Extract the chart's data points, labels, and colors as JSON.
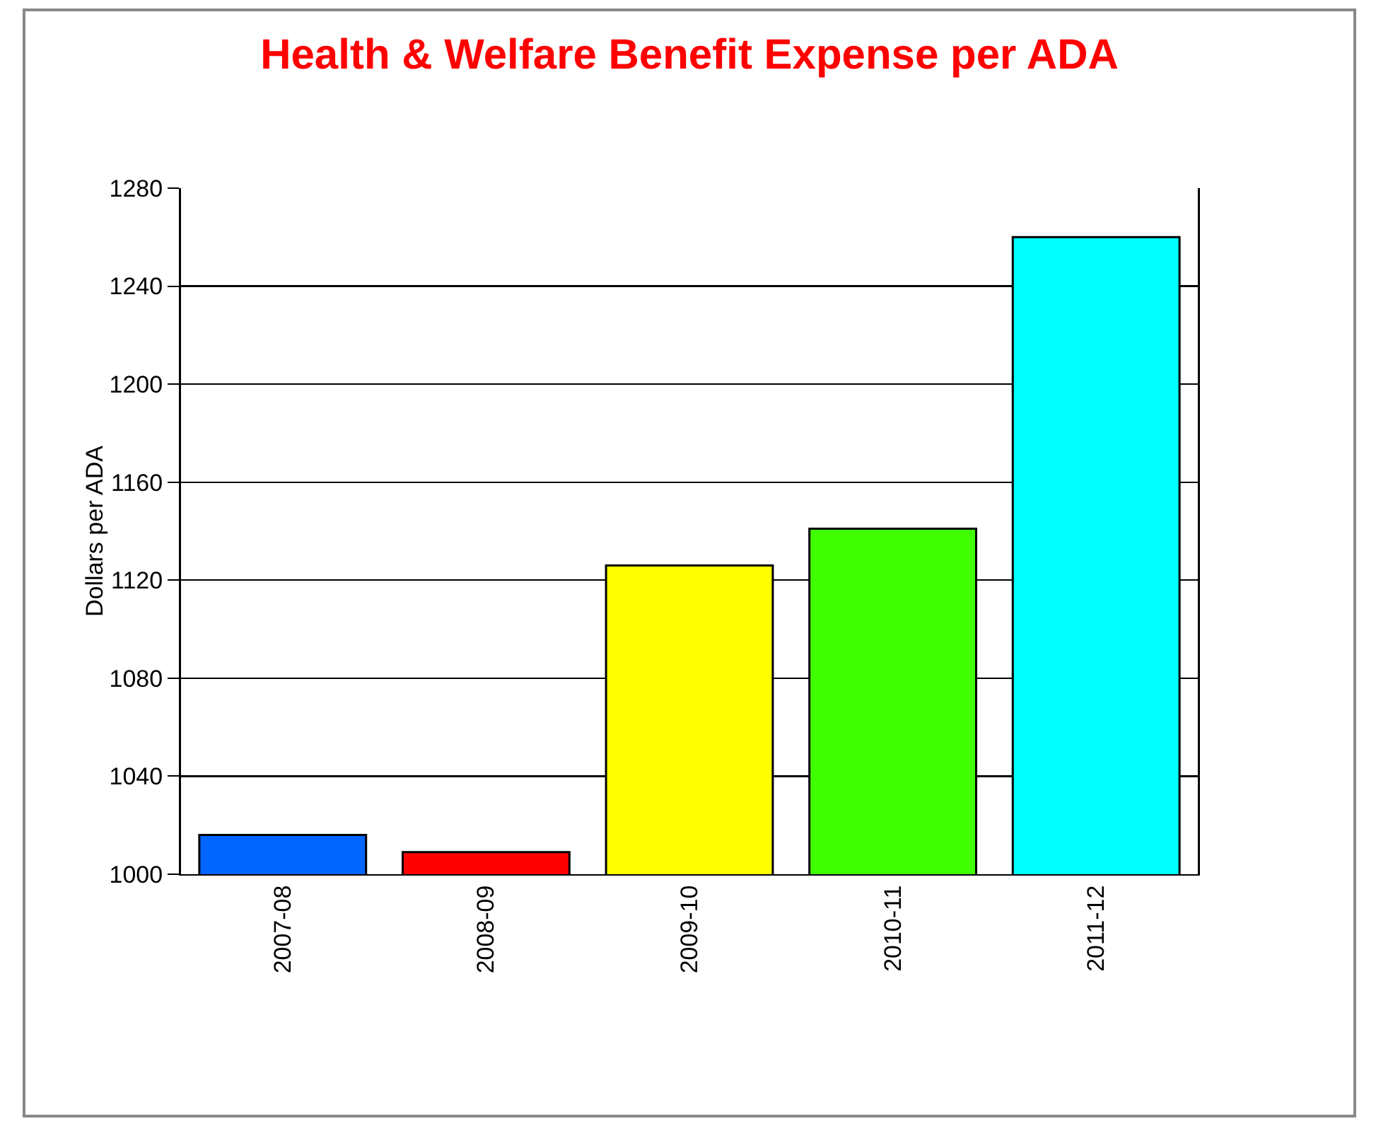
{
  "chart_data": {
    "type": "bar",
    "title": "Health & Welfare Benefit Expense per ADA",
    "ylabel": "Dollars per ADA",
    "categories": [
      "2007-08",
      "2008-09",
      "2009-10",
      "2010-11",
      "2011-12"
    ],
    "values": [
      1016,
      1009,
      1126,
      1141,
      1260
    ],
    "colors": [
      "#0066ff",
      "#ff0000",
      "#ffff00",
      "#40ff00",
      "#00ffff"
    ],
    "ylim": [
      1000,
      1280
    ],
    "yticks": [
      1000,
      1040,
      1080,
      1120,
      1160,
      1200,
      1240,
      1280
    ],
    "grid": "y"
  }
}
